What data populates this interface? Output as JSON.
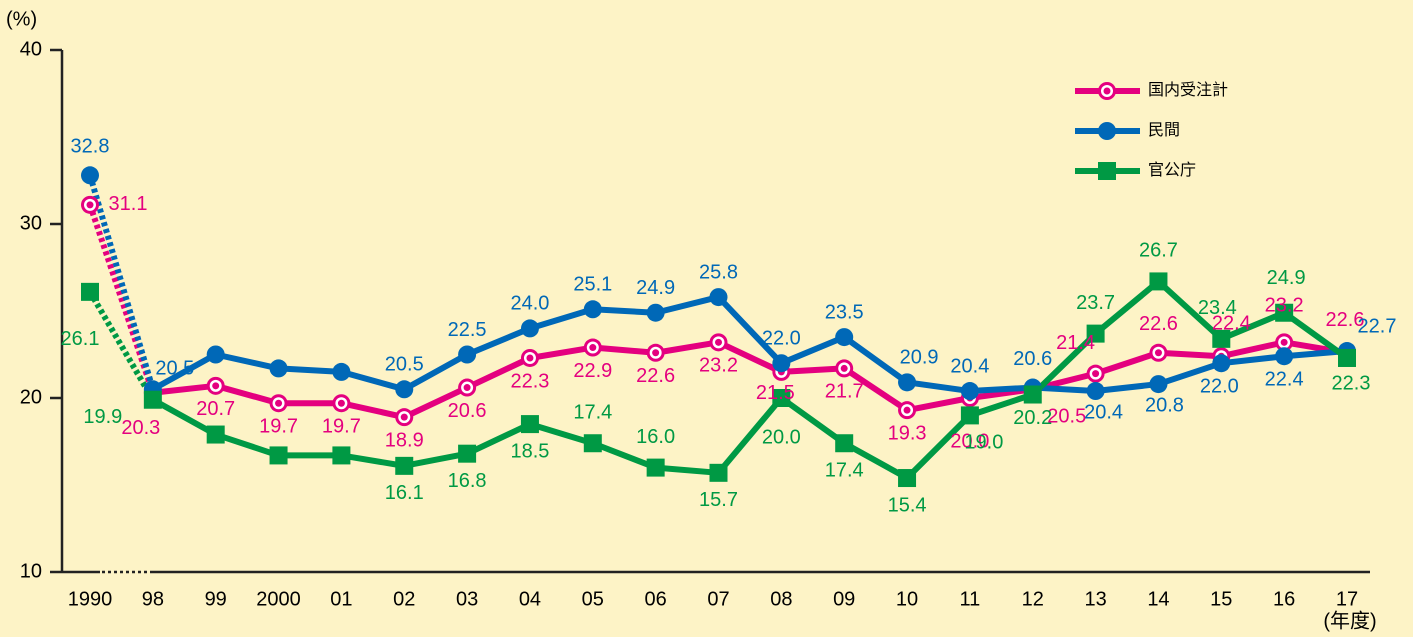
{
  "chart_data": {
    "type": "line",
    "y_label": "(%)",
    "x_label": "(年度)",
    "categories": [
      "1990",
      "98",
      "99",
      "2000",
      "01",
      "02",
      "03",
      "04",
      "05",
      "06",
      "07",
      "08",
      "09",
      "10",
      "11",
      "12",
      "13",
      "14",
      "15",
      "16",
      "17"
    ],
    "series": [
      {
        "name": "国内受注計",
        "color": "#e4007f",
        "marker": "ring",
        "values": [
          31.1,
          20.3,
          20.7,
          19.7,
          19.7,
          18.9,
          20.6,
          22.3,
          22.9,
          22.6,
          23.2,
          21.5,
          21.7,
          19.3,
          20.0,
          20.5,
          21.4,
          22.6,
          22.4,
          23.2,
          22.6
        ],
        "value_labels": [
          "31.1",
          "20.3",
          "20.7",
          "19.7",
          "19.7",
          "18.9",
          "20.6",
          "22.3",
          "22.9",
          "22.6",
          "23.2",
          "21.5",
          "21.7",
          "19.3",
          "20.0",
          "20.5",
          "21.4",
          "22.6",
          "22.4",
          "23.2",
          "22.6"
        ]
      },
      {
        "name": "民間",
        "color": "#0068b7",
        "marker": "circle",
        "values": [
          32.8,
          20.5,
          22.5,
          21.7,
          21.5,
          20.5,
          22.5,
          24.0,
          25.1,
          24.9,
          25.8,
          22.0,
          23.5,
          20.9,
          20.4,
          20.6,
          20.4,
          20.8,
          22.0,
          22.4,
          22.7
        ],
        "value_labels": [
          "32.8",
          "20.5",
          null,
          null,
          null,
          "20.5",
          "22.5",
          "24.0",
          "25.1",
          "24.9",
          "25.8",
          "22.0",
          "23.5",
          "20.9",
          "20.4",
          "20.6",
          "20.4",
          "20.8",
          "22.0",
          "22.4",
          "22.7"
        ]
      },
      {
        "name": "官公庁",
        "color": "#009944",
        "marker": "square",
        "values": [
          26.1,
          19.9,
          17.9,
          16.7,
          16.7,
          16.1,
          16.8,
          18.5,
          17.4,
          16.0,
          15.7,
          20.0,
          17.4,
          15.4,
          19.0,
          20.2,
          23.7,
          26.7,
          23.4,
          24.9,
          22.3
        ],
        "value_labels": [
          "26.1",
          "19.9",
          null,
          null,
          null,
          "16.1",
          "16.8",
          "18.5",
          "17.4",
          "16.0",
          "15.7",
          "20.0",
          "17.4",
          "15.4",
          "19.0",
          "20.2",
          "23.7",
          "26.7",
          "23.4",
          "24.9",
          "22.3"
        ]
      }
    ],
    "ylim": [
      10,
      40
    ],
    "yticks": [
      10,
      20,
      30,
      40
    ],
    "legend": "top-right"
  }
}
